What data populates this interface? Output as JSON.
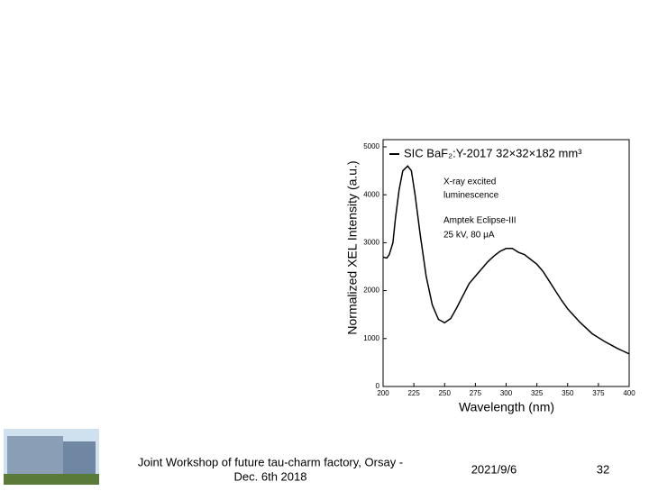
{
  "chart_data": {
    "type": "line",
    "x": [
      200,
      203,
      205,
      208,
      210,
      213,
      216,
      220,
      223,
      226,
      230,
      235,
      240,
      245,
      250,
      255,
      260,
      265,
      270,
      275,
      280,
      285,
      290,
      295,
      300,
      305,
      310,
      315,
      320,
      325,
      330,
      335,
      340,
      345,
      350,
      355,
      360,
      365,
      370,
      375,
      380,
      385,
      390,
      395,
      400
    ],
    "series": [
      {
        "name": "SIC  BaF₂:Y-2017   32×32×182 mm³",
        "color": "#000000",
        "values": [
          2700,
          2680,
          2750,
          3000,
          3500,
          4100,
          4500,
          4600,
          4500,
          4000,
          3200,
          2300,
          1700,
          1400,
          1330,
          1420,
          1650,
          1900,
          2150,
          2300,
          2450,
          2600,
          2720,
          2820,
          2880,
          2880,
          2800,
          2750,
          2650,
          2550,
          2400,
          2200,
          2000,
          1800,
          1620,
          1480,
          1340,
          1220,
          1100,
          1020,
          940,
          870,
          800,
          740,
          680
        ]
      }
    ],
    "xlim": [
      200,
      400
    ],
    "xticks": [
      200,
      225,
      250,
      275,
      300,
      325,
      350,
      375,
      400
    ],
    "ylim": [
      0,
      5000
    ],
    "yticks": [
      0,
      1000,
      2000,
      3000,
      4000,
      5000
    ],
    "x_label": "Wavelength (nm)",
    "y_label": "Normalized XEL Intensity (a.u.)",
    "annotations": [
      "X-ray excited",
      "luminescence",
      "Amptek Eclipse-III",
      "25 kV, 80 μA"
    ]
  },
  "footer": {
    "event": [
      "Joint Workshop of future tau-charm factory, Orsay -",
      "Dec. 6th 2018"
    ],
    "date": "2021/9/6",
    "page": "32"
  }
}
